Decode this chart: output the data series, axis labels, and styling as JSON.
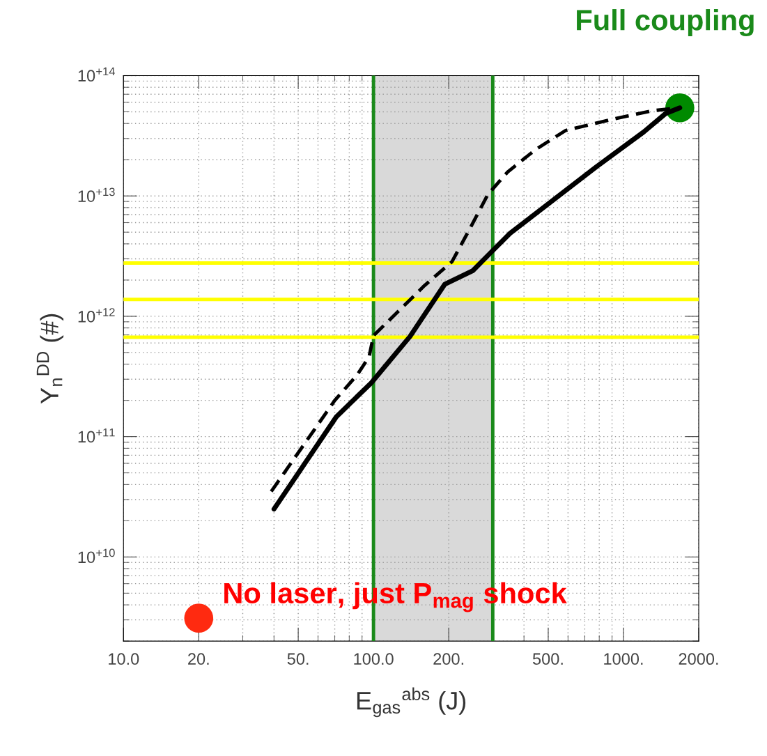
{
  "chart_data": {
    "type": "line",
    "xlabel": "E$_{gas}$$^{abs}$ (J)",
    "ylabel": "Y$_{n}$$^{DD}$ (#)",
    "log": "xy",
    "xlim": [
      10,
      2000
    ],
    "ylim": [
      2000000000,
      100000000000000
    ],
    "xticks": [
      {
        "value": 10,
        "label": "10.0"
      },
      {
        "value": 20,
        "label": "20."
      },
      {
        "value": 50,
        "label": "50."
      },
      {
        "value": 100,
        "label": "100.0"
      },
      {
        "value": 200,
        "label": "200."
      },
      {
        "value": 500,
        "label": "500."
      },
      {
        "value": 1000,
        "label": "1000."
      },
      {
        "value": 2000,
        "label": "2000."
      }
    ],
    "yticks": [
      {
        "value": 10000000000,
        "label": "10$^{+10}$"
      },
      {
        "value": 100000000000,
        "label": "10$^{+11}$"
      },
      {
        "value": 1000000000000,
        "label": "10$^{+12}$"
      },
      {
        "value": 10000000000000,
        "label": "10$^{+13}$"
      },
      {
        "value": 100000000000000,
        "label": "10$^{+14}$"
      }
    ],
    "grid": true,
    "legend": false,
    "series": [
      {
        "line_style": "solid",
        "color": "#000000",
        "x": [
          40,
          71,
          98,
          140,
          193,
          250,
          291,
          352,
          780,
          1205,
          1476,
          1680
        ],
        "values": [
          25000000000,
          146000000000,
          280000000000,
          680000000000,
          1850000000000,
          2400000000000,
          3300000000000,
          4900000000000,
          17500000000000,
          34000000000000,
          48500000000000,
          54000000000000
        ]
      },
      {
        "line_style": "dashed",
        "color": "#000000",
        "x": [
          39,
          70,
          86,
          96,
          100,
          160,
          206,
          240,
          287,
          344,
          444,
          587,
          931,
          1300,
          1680
        ],
        "values": [
          35000000000,
          200000000000,
          325000000000,
          460000000000,
          690000000000,
          1800000000000,
          2840000000000,
          5100000000000,
          10300000000000,
          15800000000000,
          24200000000000,
          35000000000000,
          44000000000000,
          51000000000000,
          54000000000000
        ]
      },
      {
        "type": "scatter",
        "marker": "circle",
        "x": [
          1680,
          20
        ],
        "values": [
          54000000000000,
          3100000000
        ],
        "colors": [
          "#008a00",
          "#ff2a10"
        ]
      }
    ],
    "ref_lines": [
      {
        "axis": "x",
        "value": 100,
        "color": "#1a8a1a"
      },
      {
        "axis": "x",
        "value": 300,
        "color": "#1a8a1a"
      },
      {
        "axis": "y",
        "value": 2770000000000,
        "color": "#ffff00"
      },
      {
        "axis": "y",
        "value": 1380000000000,
        "color": "#ffff00"
      },
      {
        "axis": "y",
        "value": 670000000000,
        "color": "#ffff00"
      }
    ],
    "bands": [
      {
        "axis": "x",
        "from": 100,
        "to": 300,
        "color": "#d9d9d9"
      }
    ],
    "annotations": [
      "Full coupling",
      "No laser, just P$_{mag}$ shock"
    ]
  }
}
